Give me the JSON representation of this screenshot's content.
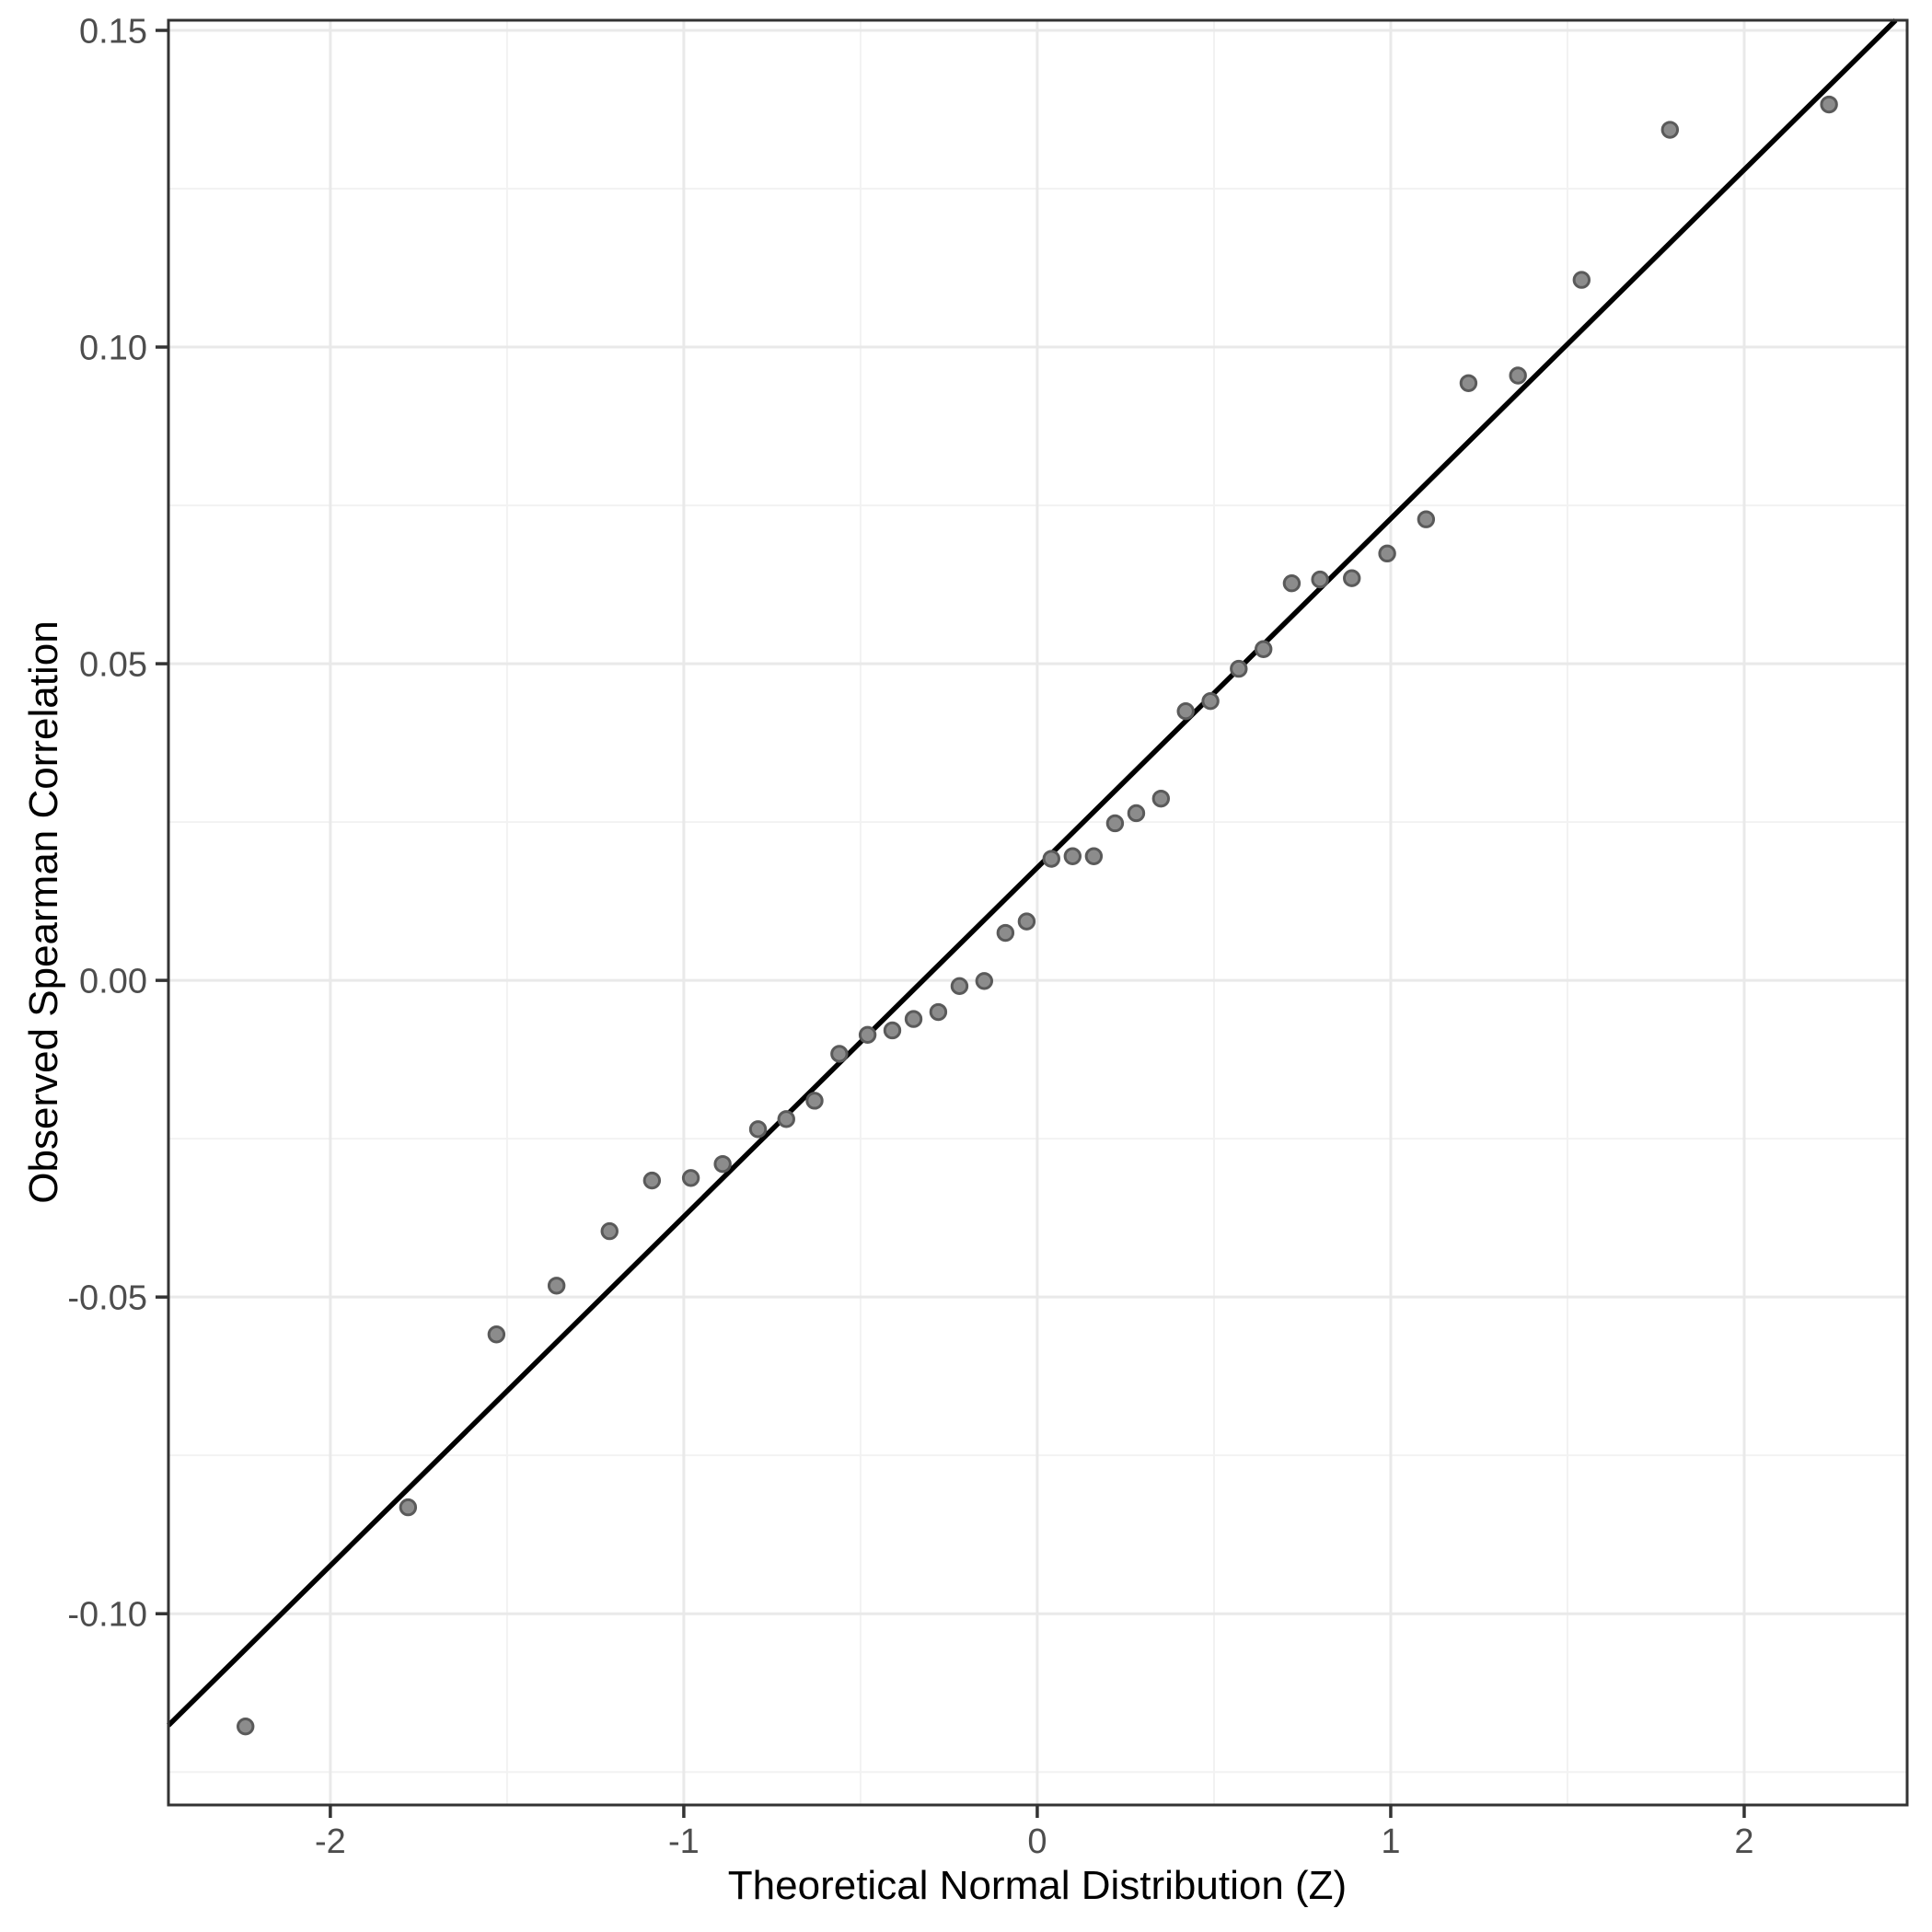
{
  "chart_data": {
    "type": "scatter",
    "title": "",
    "xlabel": "Theoretical Normal Distribution (Z)",
    "ylabel": "Observed Spearman Correlation",
    "xlim": [
      -2.458,
      2.461
    ],
    "ylim": [
      -0.1302,
      0.1516
    ],
    "grid": "on",
    "legend": "none",
    "x_ticks": [
      {
        "value": -2,
        "label": "-2"
      },
      {
        "value": -1,
        "label": "-1"
      },
      {
        "value": 0,
        "label": "0"
      },
      {
        "value": 1,
        "label": "1"
      },
      {
        "value": 2,
        "label": "2"
      }
    ],
    "y_ticks": [
      {
        "value": 0.15,
        "label": "0.15"
      },
      {
        "value": 0.1,
        "label": "0.10"
      },
      {
        "value": 0.05,
        "label": "0.05"
      },
      {
        "value": 0.0,
        "label": "0.00"
      },
      {
        "value": -0.05,
        "label": "-0.05"
      },
      {
        "value": -0.1,
        "label": "-0.10"
      }
    ],
    "x_minor_ticks": [
      -1.5,
      -0.5,
      0.5,
      1.5
    ],
    "y_minor_ticks": [
      0.125,
      0.075,
      0.025,
      -0.025,
      -0.075,
      -0.125
    ],
    "reference_line": {
      "slope": 0.0551,
      "intercept": 0.0178,
      "color": "#000000",
      "width": 5.5
    },
    "points": [
      [
        -2.24,
        -0.1178
      ],
      [
        -1.78,
        -0.0832
      ],
      [
        -1.53,
        -0.0559
      ],
      [
        -1.36,
        -0.0482
      ],
      [
        -1.21,
        -0.0396
      ],
      [
        -1.09,
        -0.0316
      ],
      [
        -0.98,
        -0.0312
      ],
      [
        -0.89,
        -0.029
      ],
      [
        -0.79,
        -0.0235
      ],
      [
        -0.71,
        -0.0219
      ],
      [
        -0.63,
        -0.019
      ],
      [
        -0.56,
        -0.0116
      ],
      [
        -0.48,
        -0.0086
      ],
      [
        -0.41,
        -0.0079
      ],
      [
        -0.35,
        -0.0061
      ],
      [
        -0.28,
        -0.005
      ],
      [
        -0.22,
        -0.0009
      ],
      [
        -0.15,
        -0.0001
      ],
      [
        -0.09,
        0.0075
      ],
      [
        -0.03,
        0.0093
      ],
      [
        0.04,
        0.0192
      ],
      [
        0.1,
        0.0196
      ],
      [
        0.16,
        0.0196
      ],
      [
        0.22,
        0.0248
      ],
      [
        0.28,
        0.0264
      ],
      [
        0.35,
        0.0287
      ],
      [
        0.42,
        0.0425
      ],
      [
        0.49,
        0.0441
      ],
      [
        0.57,
        0.0492
      ],
      [
        0.64,
        0.0523
      ],
      [
        0.72,
        0.0627
      ],
      [
        0.8,
        0.0633
      ],
      [
        0.89,
        0.0635
      ],
      [
        0.99,
        0.0674
      ],
      [
        1.1,
        0.0728
      ],
      [
        1.22,
        0.0943
      ],
      [
        1.36,
        0.0955
      ],
      [
        1.54,
        0.1106
      ],
      [
        1.79,
        0.1343
      ],
      [
        2.24,
        0.1383
      ]
    ],
    "point_style": {
      "fill": "#8c8c8c",
      "stroke": "#5a5a5a",
      "radius": 8.2,
      "stroke_width": 3
    },
    "colors": {
      "panel_background": "#ffffff",
      "panel_border": "#333333",
      "grid_major": "#e9e9e9",
      "grid_minor": "#f2f2f2",
      "tick_mark": "#333333",
      "tick_label": "#4d4d4d",
      "axis_title": "#000000"
    }
  }
}
